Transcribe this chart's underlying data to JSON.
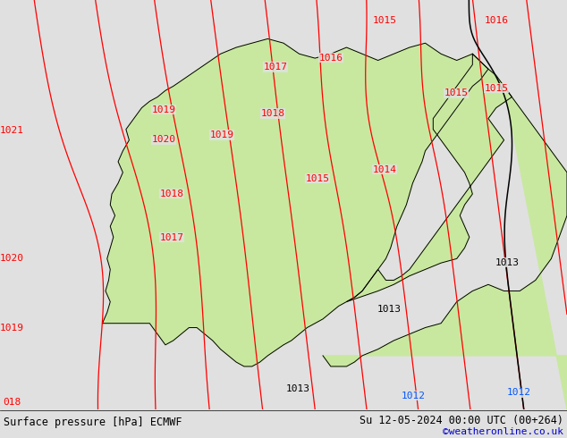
{
  "title_left": "Surface pressure [hPa] ECMWF",
  "title_right": "Su 12-05-2024 00:00 UTC (00+264)",
  "credit": "©weatheronline.co.uk",
  "bg_color": "#e0e0e0",
  "land_color": "#c8e8a0",
  "sea_color": "#c8c8c8",
  "border_color": "#000000",
  "contour_color_red": "#ff0000",
  "contour_color_black": "#000000",
  "contour_color_blue": "#0055ff",
  "credit_color": "#0000cc",
  "font_size_labels": 8,
  "font_size_title": 8.5,
  "font_size_credit": 8,
  "red_labels": [
    [
      13,
      8,
      "018"
    ],
    [
      13,
      88,
      "1019"
    ],
    [
      13,
      162,
      "1020"
    ],
    [
      13,
      300,
      "1021"
    ],
    [
      192,
      185,
      "1017"
    ],
    [
      192,
      232,
      "1018"
    ],
    [
      183,
      290,
      "1020"
    ],
    [
      183,
      322,
      "1019"
    ],
    [
      248,
      295,
      "1019"
    ],
    [
      305,
      318,
      "1018"
    ],
    [
      308,
      368,
      "1017"
    ],
    [
      355,
      248,
      "1015"
    ],
    [
      430,
      258,
      "1014"
    ],
    [
      510,
      340,
      "1015"
    ],
    [
      555,
      345,
      "1015"
    ],
    [
      370,
      378,
      "1016"
    ],
    [
      430,
      418,
      "1015"
    ],
    [
      555,
      418,
      "1016"
    ]
  ],
  "black_labels": [
    [
      333,
      22,
      "1013"
    ],
    [
      435,
      108,
      "1013"
    ],
    [
      567,
      158,
      "1013"
    ]
  ],
  "blue_labels": [
    [
      462,
      15,
      "1012"
    ],
    [
      580,
      18,
      "1012"
    ]
  ],
  "lon_min": -2.0,
  "lon_max": 34.0,
  "lat_min": 54.0,
  "lat_max": 73.0
}
